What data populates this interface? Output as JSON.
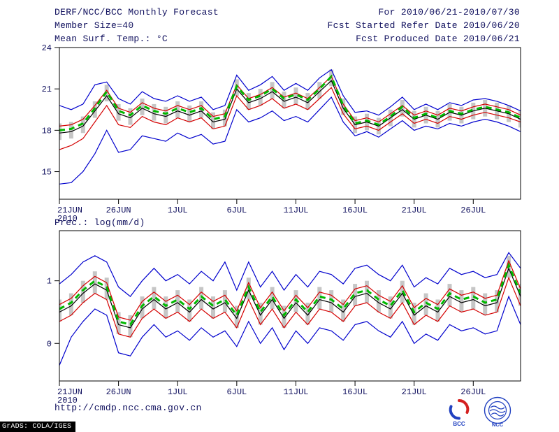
{
  "header": {
    "title": "DERF/NCC/BCC Monthly Forecast",
    "member_size": "Member Size=40",
    "for_range": "For 2010/06/21-2010/07/30",
    "refer_date": "Fcst Started Refer Date 2010/06/20",
    "produced_date": "Fcst Produced Date 2010/06/21"
  },
  "footer": {
    "url": "http://cmdp.ncc.cma.gov.cn",
    "grads_credit": "GrADS: COLA/IGES",
    "bcc_label": "BCC",
    "ncc_label": "NCC"
  },
  "chart_data": [
    {
      "type": "line",
      "title": "Mean Surf. Temp.: °C",
      "x_year_label": "2010",
      "n_points": 40,
      "x_tick_labels": [
        "21JUN",
        "26JUN",
        "1JUL",
        "6JUL",
        "11JUL",
        "16JUL",
        "21JUL",
        "26JUL"
      ],
      "x_tick_indices": [
        0,
        5,
        10,
        15,
        20,
        25,
        30,
        35
      ],
      "ylim": [
        13,
        24
      ],
      "yticks": [
        15,
        18,
        21,
        24
      ],
      "grid": false,
      "legend": "none",
      "bars": {
        "name": "ensemble-spread-bar",
        "color": "#c6c6c6",
        "top": [
          18.5,
          18.6,
          19.0,
          20.1,
          21.3,
          19.9,
          19.6,
          20.3,
          19.9,
          19.7,
          20.1,
          19.8,
          20.1,
          19.3,
          19.5,
          21.7,
          20.7,
          21.0,
          21.5,
          20.8,
          21.1,
          20.7,
          21.5,
          22.4,
          20.3,
          19.0,
          19.2,
          18.9,
          19.5,
          20.2,
          19.4,
          19.7,
          19.4,
          19.9,
          19.7,
          20.0,
          20.2,
          20.0,
          19.8,
          19.4
        ],
        "bottom": [
          17.3,
          17.4,
          17.8,
          18.9,
          20.1,
          18.7,
          18.4,
          19.1,
          18.7,
          18.5,
          18.9,
          18.6,
          18.9,
          18.1,
          18.3,
          20.5,
          19.5,
          19.8,
          20.3,
          19.6,
          19.9,
          19.5,
          20.3,
          21.2,
          19.1,
          17.8,
          18.0,
          17.7,
          18.3,
          19.0,
          18.2,
          18.5,
          18.2,
          18.7,
          18.5,
          18.8,
          19.0,
          18.8,
          18.6,
          18.2
        ]
      },
      "series": [
        {
          "name": "ensemble-max",
          "color": "#0000cd",
          "width": 1.2,
          "values": [
            19.8,
            19.5,
            19.9,
            21.3,
            21.5,
            20.3,
            19.9,
            20.8,
            20.3,
            20.1,
            20.5,
            20.1,
            20.4,
            19.5,
            19.8,
            22.0,
            20.9,
            21.3,
            21.9,
            20.9,
            21.4,
            20.9,
            21.8,
            22.4,
            20.5,
            19.3,
            19.4,
            19.1,
            19.7,
            20.4,
            19.5,
            19.9,
            19.5,
            20.0,
            19.8,
            20.2,
            20.3,
            20.1,
            19.8,
            19.4
          ]
        },
        {
          "name": "ensemble-min",
          "color": "#0000cd",
          "width": 1.2,
          "values": [
            14.1,
            14.2,
            15.0,
            16.3,
            18.0,
            16.4,
            16.6,
            17.6,
            17.4,
            17.2,
            17.8,
            17.4,
            17.7,
            17.0,
            17.2,
            19.5,
            18.6,
            18.9,
            19.4,
            18.7,
            19.0,
            18.6,
            19.5,
            20.4,
            18.6,
            17.6,
            17.9,
            17.5,
            18.1,
            18.7,
            18.0,
            18.3,
            18.1,
            18.5,
            18.3,
            18.6,
            18.8,
            18.6,
            18.3,
            17.9
          ]
        },
        {
          "name": "upper-bound",
          "color": "#d40000",
          "width": 1.2,
          "values": [
            18.3,
            18.4,
            18.8,
            19.8,
            20.9,
            19.6,
            19.3,
            20.0,
            19.6,
            19.4,
            19.8,
            19.5,
            19.8,
            19.0,
            19.2,
            21.3,
            20.3,
            20.6,
            21.1,
            20.4,
            20.7,
            20.3,
            21.1,
            21.9,
            19.9,
            18.7,
            18.9,
            18.6,
            19.2,
            19.8,
            19.1,
            19.4,
            19.1,
            19.6,
            19.4,
            19.7,
            19.9,
            19.7,
            19.5,
            19.1
          ]
        },
        {
          "name": "lower-bound",
          "color": "#d40000",
          "width": 1.2,
          "values": [
            16.6,
            16.9,
            17.4,
            18.6,
            19.8,
            18.4,
            18.2,
            19.0,
            18.6,
            18.4,
            18.9,
            18.6,
            18.9,
            18.1,
            18.3,
            20.5,
            19.5,
            19.8,
            20.3,
            19.6,
            19.9,
            19.5,
            20.3,
            21.1,
            19.2,
            18.1,
            18.3,
            18.0,
            18.6,
            19.2,
            18.5,
            18.8,
            18.5,
            19.0,
            18.8,
            19.1,
            19.3,
            19.1,
            18.9,
            18.6
          ]
        },
        {
          "name": "ensemble-mean",
          "color": "#000000",
          "width": 1.2,
          "values": [
            17.8,
            17.9,
            18.3,
            19.4,
            20.5,
            19.2,
            18.9,
            19.6,
            19.2,
            19.0,
            19.4,
            19.1,
            19.4,
            18.6,
            18.8,
            21.0,
            20.0,
            20.3,
            20.8,
            20.1,
            20.4,
            20.0,
            20.8,
            21.6,
            19.6,
            18.4,
            18.6,
            18.3,
            18.9,
            19.5,
            18.8,
            19.1,
            18.8,
            19.3,
            19.1,
            19.4,
            19.6,
            19.4,
            19.2,
            18.8
          ]
        },
        {
          "name": "ensemble-median",
          "color": "#00b800",
          "width": 3,
          "dash": "8 6",
          "values": [
            18.0,
            18.1,
            18.5,
            19.6,
            20.8,
            19.4,
            19.1,
            19.8,
            19.4,
            19.2,
            19.6,
            19.3,
            19.6,
            18.8,
            19.0,
            21.2,
            20.2,
            20.5,
            21.0,
            20.3,
            20.6,
            20.2,
            21.0,
            21.9,
            19.8,
            18.5,
            18.7,
            18.4,
            19.0,
            19.7,
            18.9,
            19.2,
            18.9,
            19.4,
            19.2,
            19.5,
            19.7,
            19.5,
            19.3,
            18.9
          ]
        }
      ]
    },
    {
      "type": "line",
      "title": "Prec.: log(mm/d)",
      "x_year_label": "2010",
      "n_points": 40,
      "x_tick_labels": [
        "21JUN",
        "26JUN",
        "1JUL",
        "6JUL",
        "11JUL",
        "16JUL",
        "21JUL",
        "26JUL"
      ],
      "x_tick_indices": [
        0,
        5,
        10,
        15,
        20,
        25,
        30,
        35
      ],
      "ylim": [
        -0.6,
        1.8
      ],
      "yticks": [
        0,
        1
      ],
      "grid": false,
      "legend": "none",
      "bars": {
        "name": "ensemble-spread-bar",
        "color": "#c6c6c6",
        "top": [
          0.7,
          0.8,
          1.0,
          1.15,
          1.05,
          0.5,
          0.45,
          0.75,
          0.9,
          0.75,
          0.85,
          0.7,
          0.9,
          0.75,
          0.85,
          0.6,
          1.05,
          0.65,
          0.9,
          0.6,
          0.85,
          0.65,
          0.9,
          0.85,
          0.7,
          0.95,
          1.0,
          0.85,
          0.75,
          1.0,
          0.65,
          0.8,
          0.7,
          0.95,
          0.85,
          0.9,
          0.8,
          0.85,
          1.4,
          0.95
        ],
        "bottom": [
          0.35,
          0.45,
          0.65,
          0.8,
          0.7,
          0.15,
          0.1,
          0.4,
          0.55,
          0.4,
          0.5,
          0.35,
          0.55,
          0.4,
          0.5,
          0.25,
          0.7,
          0.3,
          0.55,
          0.25,
          0.5,
          0.3,
          0.55,
          0.5,
          0.35,
          0.6,
          0.65,
          0.5,
          0.4,
          0.65,
          0.3,
          0.45,
          0.35,
          0.6,
          0.5,
          0.55,
          0.45,
          0.5,
          1.05,
          0.6
        ]
      },
      "series": [
        {
          "name": "ensemble-max",
          "color": "#0000cd",
          "width": 1.2,
          "values": [
            0.95,
            1.1,
            1.3,
            1.4,
            1.3,
            0.9,
            0.75,
            1.0,
            1.2,
            1.0,
            1.1,
            0.95,
            1.15,
            1.0,
            1.3,
            0.85,
            1.3,
            0.9,
            1.15,
            0.85,
            1.1,
            0.9,
            1.15,
            1.1,
            0.95,
            1.2,
            1.25,
            1.1,
            1.0,
            1.25,
            0.9,
            1.05,
            0.95,
            1.2,
            1.1,
            1.15,
            1.05,
            1.1,
            1.45,
            1.2
          ]
        },
        {
          "name": "ensemble-min",
          "color": "#0000cd",
          "width": 1.2,
          "values": [
            -0.35,
            0.1,
            0.35,
            0.55,
            0.45,
            -0.15,
            -0.2,
            0.1,
            0.3,
            0.1,
            0.2,
            0.05,
            0.25,
            0.1,
            0.2,
            -0.05,
            0.35,
            0.0,
            0.25,
            -0.1,
            0.2,
            0.0,
            0.25,
            0.2,
            0.05,
            0.3,
            0.35,
            0.2,
            0.1,
            0.35,
            0.0,
            0.15,
            0.05,
            0.3,
            0.2,
            0.25,
            0.15,
            0.2,
            0.75,
            0.3
          ]
        },
        {
          "name": "upper-bound",
          "color": "#d40000",
          "width": 1.2,
          "values": [
            0.62,
            0.72,
            0.92,
            1.07,
            0.97,
            0.42,
            0.37,
            0.67,
            0.82,
            0.67,
            0.77,
            0.62,
            0.82,
            0.67,
            0.77,
            0.52,
            0.97,
            0.57,
            0.82,
            0.52,
            0.77,
            0.57,
            0.82,
            0.77,
            0.62,
            0.87,
            0.92,
            0.77,
            0.67,
            0.92,
            0.57,
            0.72,
            0.62,
            0.87,
            0.77,
            0.82,
            0.72,
            0.77,
            1.32,
            0.87
          ]
        },
        {
          "name": "lower-bound",
          "color": "#d40000",
          "width": 1.2,
          "values": [
            0.35,
            0.45,
            0.65,
            0.8,
            0.7,
            0.15,
            0.1,
            0.4,
            0.55,
            0.4,
            0.5,
            0.35,
            0.55,
            0.4,
            0.5,
            0.25,
            0.7,
            0.3,
            0.55,
            0.25,
            0.5,
            0.3,
            0.55,
            0.5,
            0.35,
            0.6,
            0.65,
            0.5,
            0.4,
            0.65,
            0.3,
            0.45,
            0.35,
            0.6,
            0.5,
            0.55,
            0.45,
            0.5,
            1.05,
            0.6
          ]
        },
        {
          "name": "ensemble-mean",
          "color": "#000000",
          "width": 1.2,
          "values": [
            0.5,
            0.6,
            0.8,
            0.95,
            0.85,
            0.3,
            0.25,
            0.55,
            0.7,
            0.55,
            0.65,
            0.5,
            0.7,
            0.55,
            0.65,
            0.4,
            0.85,
            0.45,
            0.7,
            0.4,
            0.65,
            0.45,
            0.7,
            0.65,
            0.5,
            0.75,
            0.8,
            0.65,
            0.55,
            0.8,
            0.45,
            0.6,
            0.5,
            0.75,
            0.65,
            0.7,
            0.6,
            0.65,
            1.2,
            0.75
          ]
        },
        {
          "name": "ensemble-median",
          "color": "#00b800",
          "width": 3,
          "dash": "8 6",
          "values": [
            0.55,
            0.65,
            0.85,
            1.0,
            0.9,
            0.35,
            0.3,
            0.6,
            0.75,
            0.6,
            0.7,
            0.55,
            0.75,
            0.6,
            0.7,
            0.45,
            0.9,
            0.5,
            0.75,
            0.45,
            0.7,
            0.5,
            0.75,
            0.7,
            0.55,
            0.8,
            0.85,
            0.7,
            0.6,
            0.85,
            0.5,
            0.65,
            0.55,
            0.8,
            0.7,
            0.75,
            0.65,
            0.7,
            1.25,
            0.8
          ]
        }
      ]
    }
  ]
}
